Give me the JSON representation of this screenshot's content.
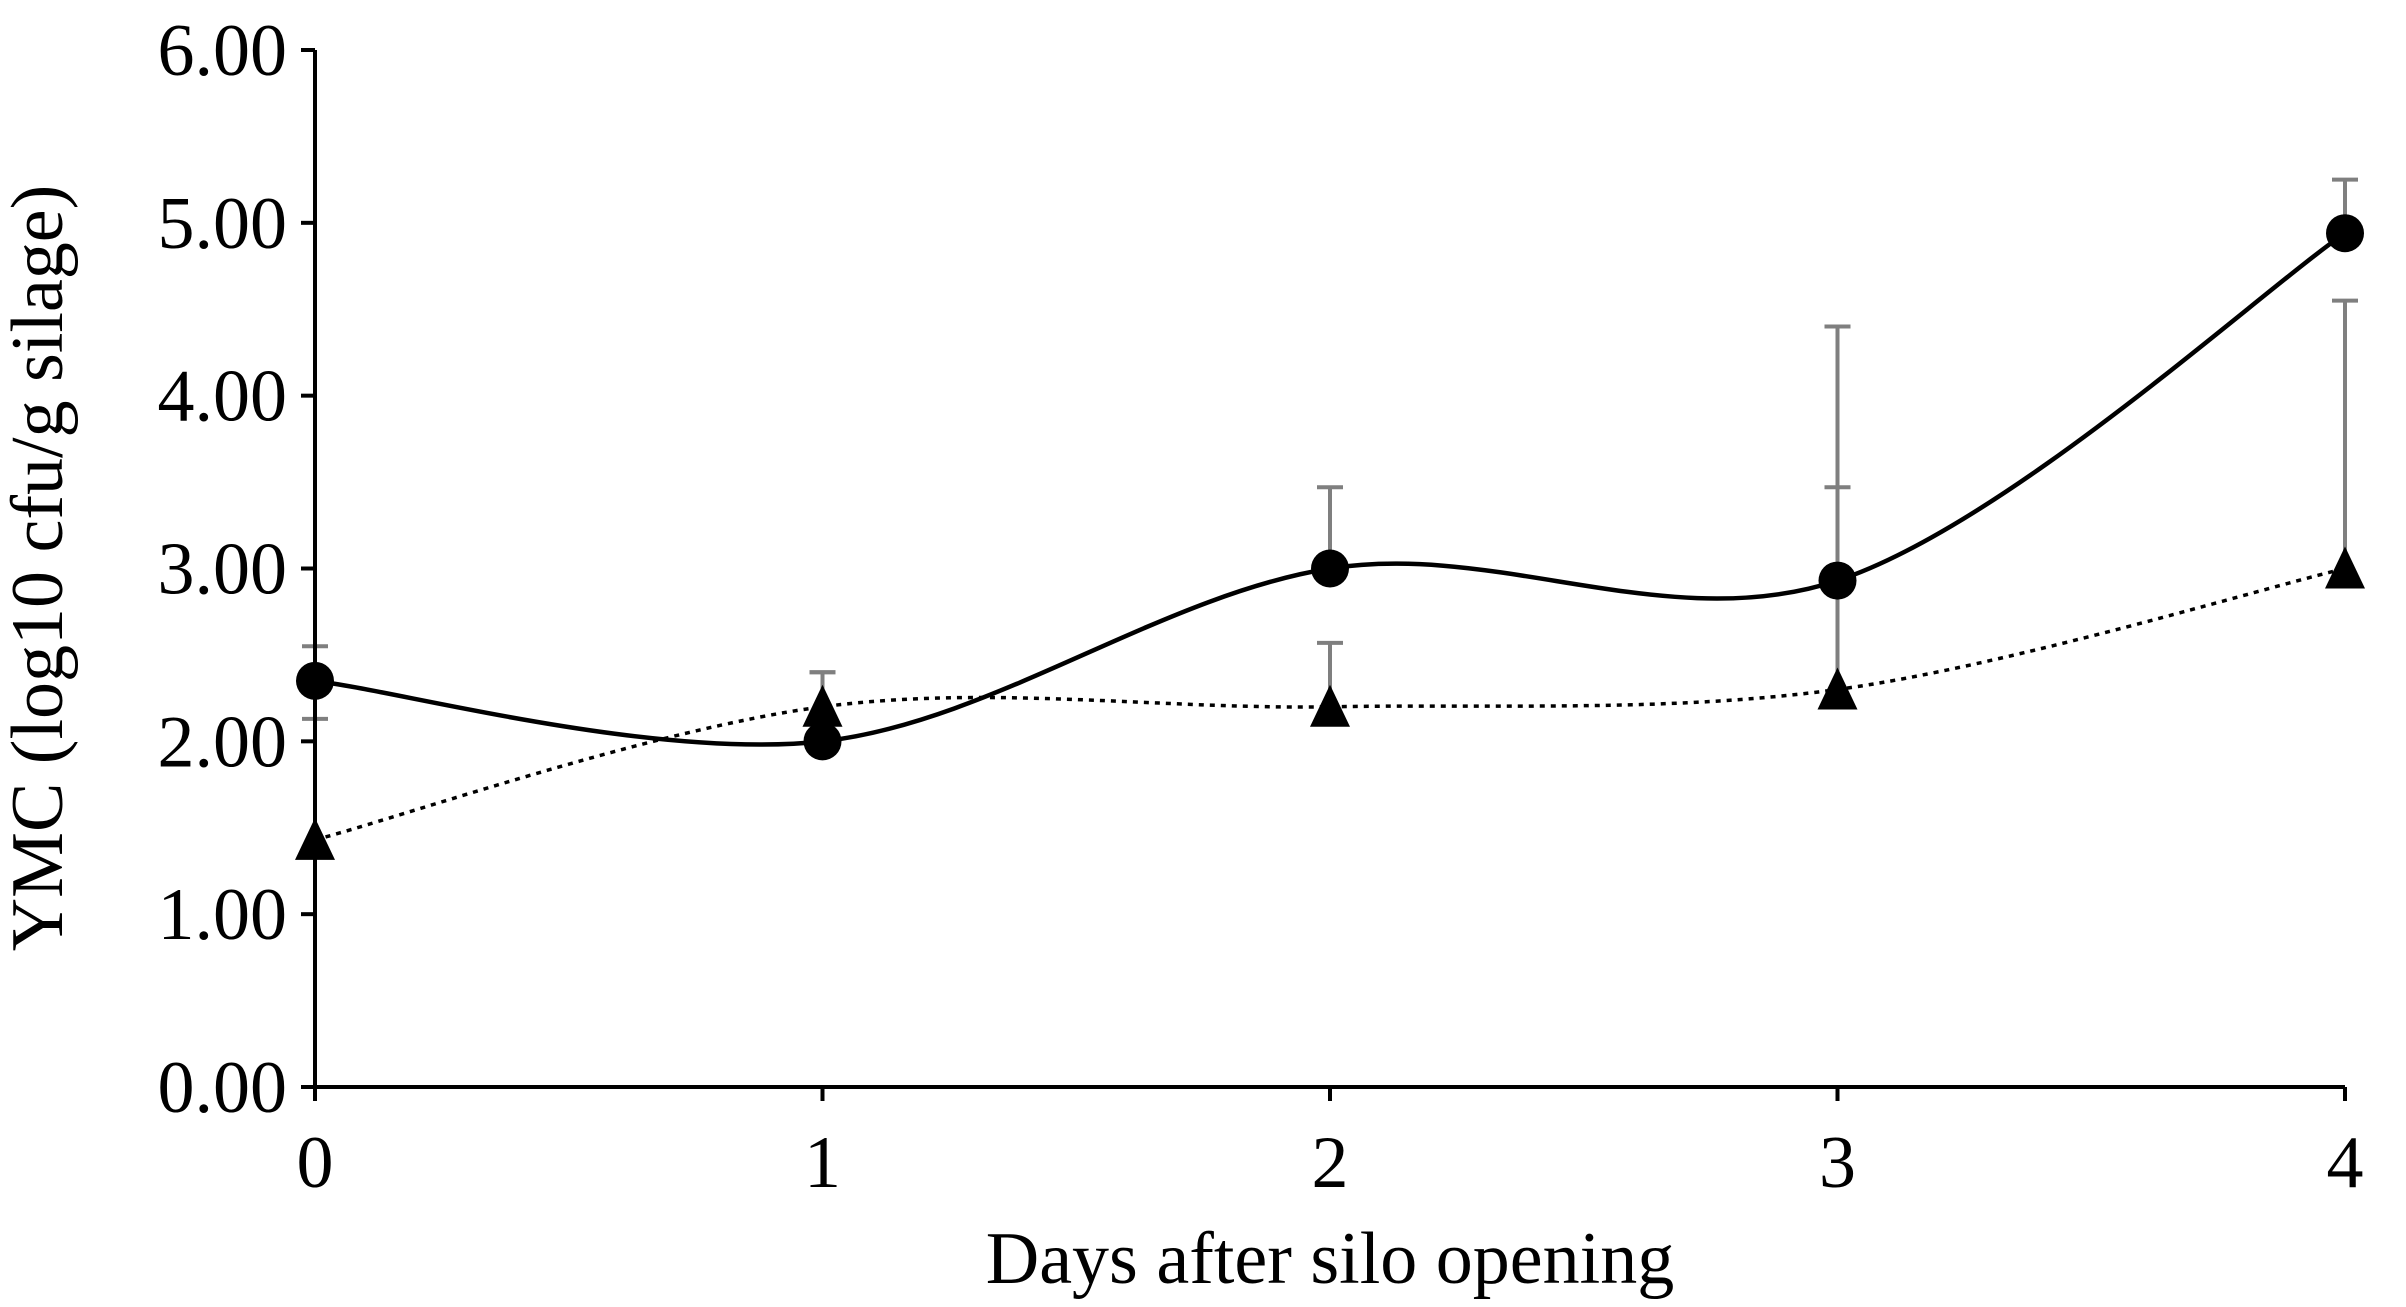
{
  "chart_data": {
    "type": "line",
    "title": "",
    "xlabel": "Days after silo opening",
    "ylabel": "YMC (log10 cfu/g silage)",
    "x": [
      0,
      1,
      2,
      3,
      4
    ],
    "x_tick_labels": [
      "0",
      "1",
      "2",
      "3",
      "4"
    ],
    "ylim": [
      0,
      6
    ],
    "y_tick_labels": [
      "0.00",
      "1.00",
      "2.00",
      "3.00",
      "4.00",
      "5.00",
      "6.00"
    ],
    "grid": false,
    "legend": "none",
    "series": [
      {
        "marker": "circle",
        "line_style": "solid",
        "color": "#000000",
        "values": [
          2.35,
          2.0,
          3.0,
          2.93,
          4.94
        ],
        "error_upper": [
          2.55,
          2.4,
          3.47,
          3.47,
          5.25
        ]
      },
      {
        "marker": "triangle",
        "line_style": "dotted",
        "color": "#000000",
        "values": [
          1.43,
          2.2,
          2.2,
          2.3,
          3.0
        ],
        "error_upper": [
          2.13,
          2.4,
          2.57,
          4.4,
          4.55
        ]
      }
    ],
    "error_bar_color": "#7f7f7f"
  }
}
